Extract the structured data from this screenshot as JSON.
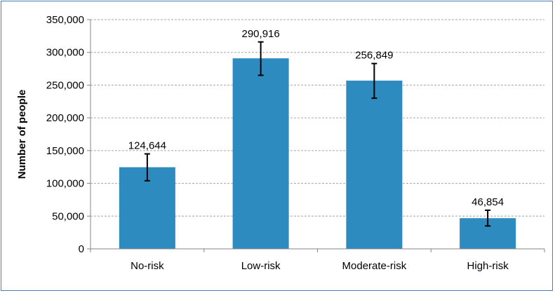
{
  "chart_data": {
    "type": "bar",
    "title": "",
    "xlabel": "",
    "ylabel": "Number of people",
    "categories": [
      "No-risk",
      "Low-risk",
      "Moderate-risk",
      "High-risk"
    ],
    "values": [
      124644,
      290916,
      256849,
      46854
    ],
    "value_labels": [
      "124,644",
      "290,916",
      "256,849",
      "46,854"
    ],
    "error_bars": [
      {
        "low": 104000,
        "high": 145000
      },
      {
        "low": 265000,
        "high": 316000
      },
      {
        "low": 230000,
        "high": 283000
      },
      {
        "low": 35000,
        "high": 59000
      }
    ],
    "ylim": [
      0,
      350000
    ],
    "yticks": [
      0,
      50000,
      100000,
      150000,
      200000,
      250000,
      300000,
      350000
    ],
    "ytick_labels": [
      "0",
      "50,000",
      "100,000",
      "150,000",
      "200,000",
      "250,000",
      "300,000",
      "350,000"
    ],
    "grid": true,
    "grid_style": "dashed",
    "bar_color": "#2e8bc0",
    "grid_color": "#a6a6a6",
    "border_color": "#4a7ebb",
    "legend": "none"
  }
}
